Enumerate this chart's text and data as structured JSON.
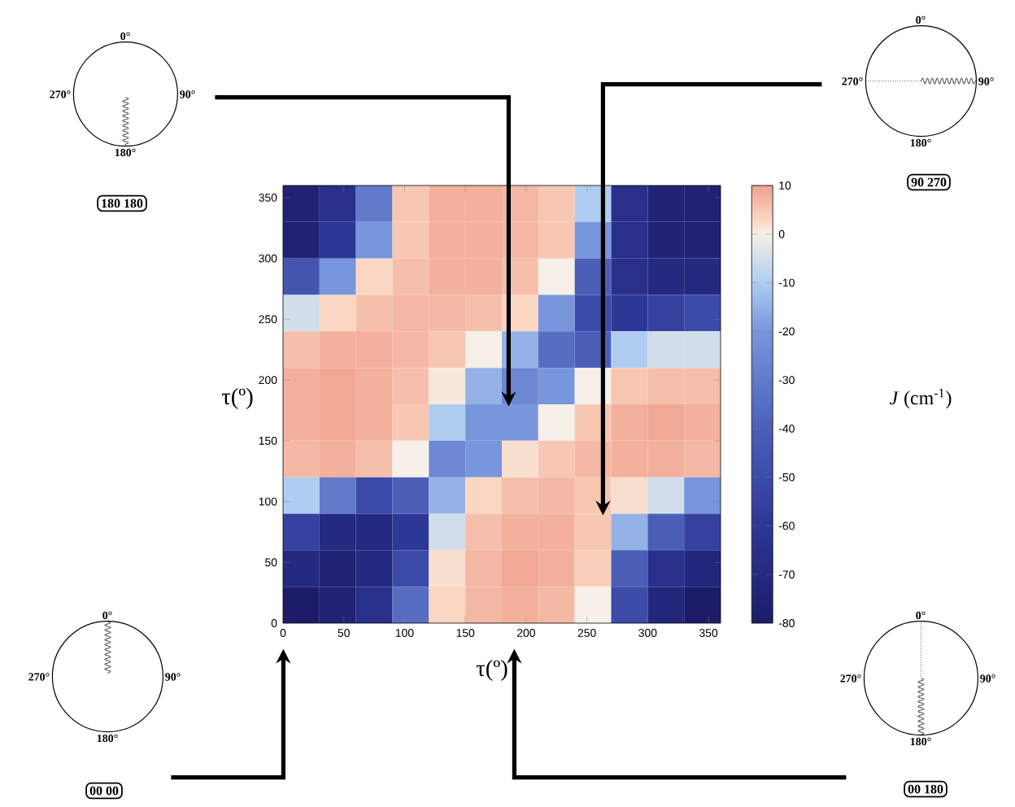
{
  "chart_data": {
    "type": "heatmap",
    "xlabel": "τ(º)",
    "ylabel": "τ(º)",
    "clabel": "*J* (cm$^{-1}$)",
    "x": [
      15,
      45,
      75,
      105,
      135,
      165,
      195,
      225,
      255,
      285,
      315,
      345
    ],
    "cells": [
      [
        -75,
        -65,
        -30,
        5,
        8,
        8,
        7,
        5,
        -10,
        -65,
        -75,
        -75
      ],
      [
        -75,
        -60,
        -20,
        5,
        8,
        8,
        7,
        5,
        -20,
        -65,
        -75,
        -75
      ],
      [
        -45,
        -20,
        3,
        6,
        8,
        8,
        6,
        0,
        -40,
        -65,
        -70,
        -70
      ],
      [
        -5,
        3,
        6,
        7,
        7,
        6,
        3,
        -20,
        -50,
        -60,
        -55,
        -50
      ],
      [
        6,
        8,
        8,
        7,
        5,
        0,
        -15,
        -35,
        -40,
        -10,
        -5,
        -5
      ],
      [
        8,
        9,
        8,
        6,
        1,
        -15,
        -25,
        -20,
        0,
        5,
        6,
        6
      ],
      [
        8,
        9,
        8,
        5,
        -10,
        -20,
        -20,
        0,
        5,
        8,
        9,
        8
      ],
      [
        7,
        8,
        6,
        0,
        -25,
        -20,
        2,
        5,
        7,
        8,
        8,
        7
      ],
      [
        -10,
        -30,
        -50,
        -40,
        -15,
        3,
        6,
        7,
        5,
        2,
        -5,
        -20
      ],
      [
        -55,
        -70,
        -70,
        -60,
        -5,
        6,
        8,
        8,
        5,
        -15,
        -40,
        -55
      ],
      [
        -70,
        -75,
        -70,
        -50,
        2,
        7,
        9,
        8,
        4,
        -40,
        -65,
        -72
      ],
      [
        -80,
        -75,
        -65,
        -35,
        3,
        7,
        8,
        7,
        0,
        -50,
        -72,
        -80
      ]
    ],
    "clim": [
      -80,
      10
    ],
    "cticks": [
      -80,
      -70,
      -60,
      -50,
      -40,
      -30,
      -20,
      -10,
      0,
      10
    ],
    "xlim": [
      0,
      360
    ],
    "xticks": [
      0,
      50,
      100,
      150,
      200,
      250,
      300,
      350
    ],
    "ylim": [
      0,
      360
    ],
    "yticks": [
      0,
      50,
      100,
      150,
      200,
      250,
      300,
      350
    ],
    "annotations": [
      "0°",
      "90°",
      "180°",
      "270°",
      "180 180",
      "0°",
      "90°",
      "180°",
      "270°",
      "90 270",
      "0°",
      "90°",
      "180°",
      "270°",
      "00 00",
      "0°",
      "90°",
      "180°",
      "270°",
      "00 180"
    ]
  }
}
